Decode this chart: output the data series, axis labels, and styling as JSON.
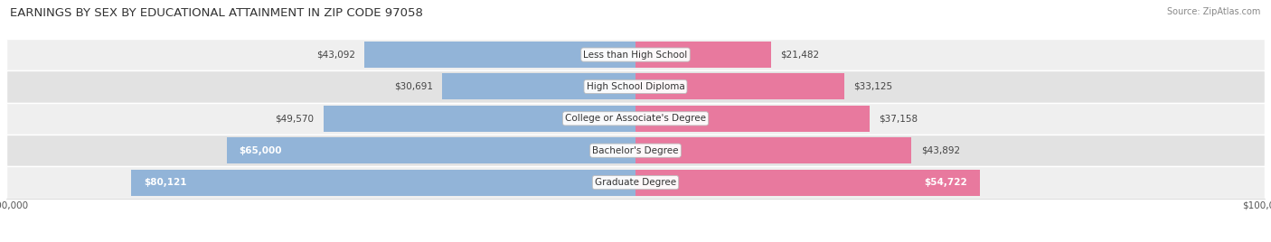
{
  "title": "EARNINGS BY SEX BY EDUCATIONAL ATTAINMENT IN ZIP CODE 97058",
  "source": "Source: ZipAtlas.com",
  "categories": [
    "Less than High School",
    "High School Diploma",
    "College or Associate's Degree",
    "Bachelor's Degree",
    "Graduate Degree"
  ],
  "male_values": [
    43092,
    30691,
    49570,
    65000,
    80121
  ],
  "female_values": [
    21482,
    33125,
    37158,
    43892,
    54722
  ],
  "male_color": "#92b4d8",
  "female_color": "#e8799e",
  "row_bgcolor_odd": "#efefef",
  "row_bgcolor_even": "#e2e2e2",
  "x_max": 100000,
  "bar_height": 0.82,
  "title_fontsize": 9.5,
  "label_fontsize": 7.5,
  "tick_fontsize": 7.5,
  "source_fontsize": 7,
  "cat_label_fontsize": 7.5
}
